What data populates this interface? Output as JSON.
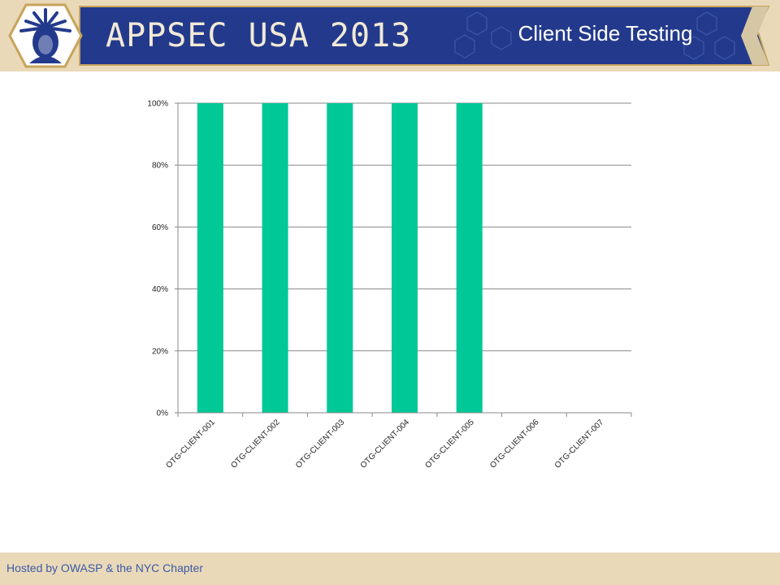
{
  "header": {
    "event_title": "APPSEC USA 2013",
    "slide_title": "Client Side Testing",
    "colors": {
      "banner": "#233a8c",
      "band": "#ead9b9"
    },
    "logo_icon": "statue-of-liberty-icon"
  },
  "footer": {
    "text": "Hosted by OWASP & the NYC Chapter"
  },
  "chart_data": {
    "type": "bar",
    "categories": [
      "OTG-CLIENT-001",
      "OTG-CLIENT-002",
      "OTG-CLIENT-003",
      "OTG-CLIENT-004",
      "OTG-CLIENT-005",
      "OTG-CLIENT-006",
      "OTG-CLIENT-007"
    ],
    "values": [
      100,
      100,
      100,
      100,
      100,
      0,
      0
    ],
    "yticks": [
      "0%",
      "20%",
      "40%",
      "60%",
      "80%",
      "100%"
    ],
    "ylim": [
      0,
      100
    ],
    "grid": true,
    "legend": "none",
    "bar_color": "#00c896"
  }
}
